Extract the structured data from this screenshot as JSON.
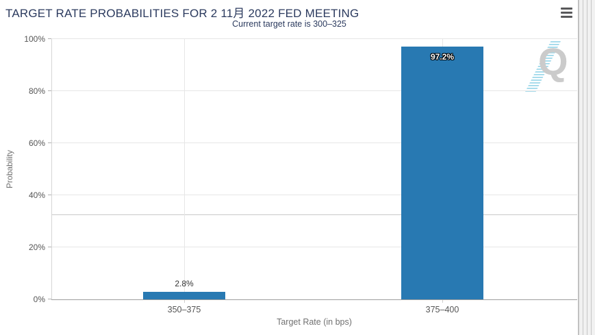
{
  "chart_data": {
    "type": "bar",
    "title": "TARGET RATE PROBABILITIES FOR 2 11月 2022 FED MEETING",
    "subtitle": "Current target rate is 300–325",
    "categories": [
      "350–375",
      "375–400"
    ],
    "values": [
      2.8,
      97.2
    ],
    "value_labels": [
      "2.8%",
      "97.2%"
    ],
    "xlabel": "Target Rate (in bps)",
    "ylabel": "Probability",
    "ylim": [
      0,
      100
    ],
    "yticks": [
      "0%",
      "20%",
      "40%",
      "60%",
      "80%",
      "100%"
    ],
    "bar_color": "#2879b2",
    "grid": true,
    "legend": "none"
  },
  "watermark": {
    "letter": "Q"
  }
}
